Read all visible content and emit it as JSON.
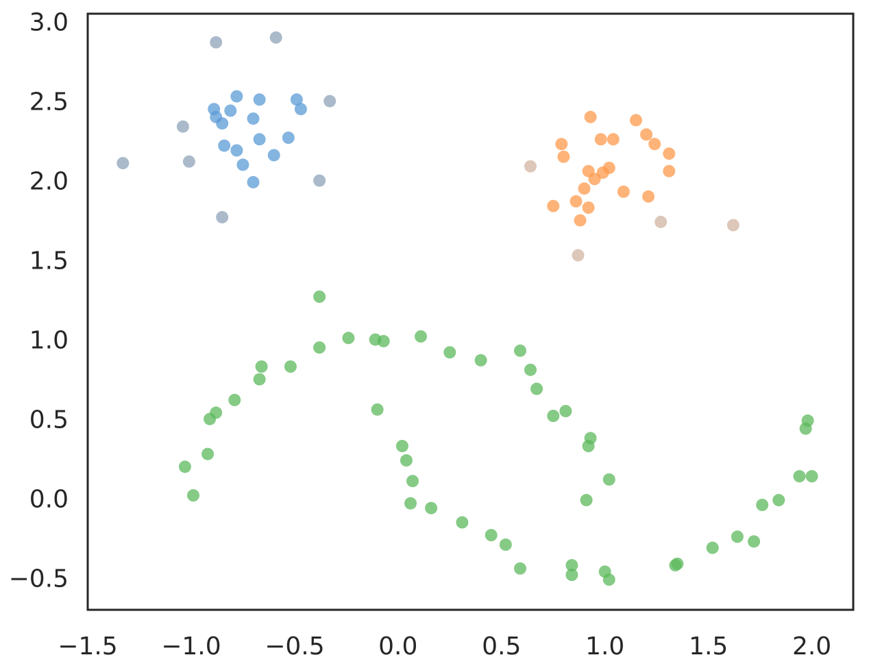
{
  "chart_data": {
    "type": "scatter",
    "title": "",
    "xlabel": "",
    "ylabel": "",
    "xlim": [
      -1.5,
      2.2
    ],
    "ylim": [
      -0.7,
      3.05
    ],
    "grid": false,
    "legend": "none",
    "xticks": [
      -1.5,
      -1.0,
      -0.5,
      0.0,
      0.5,
      1.0,
      1.5,
      2.0
    ],
    "yticks": [
      -0.5,
      0.0,
      0.5,
      1.0,
      1.5,
      2.0,
      2.5,
      3.0
    ],
    "xtick_labels": [
      "−1.5",
      "−1.0",
      "−0.5",
      "0.0",
      "0.5",
      "1.0",
      "1.5",
      "2.0"
    ],
    "ytick_labels": [
      "−0.5",
      "0.0",
      "0.5",
      "1.0",
      "1.5",
      "2.0",
      "2.5",
      "3.0"
    ],
    "series": [
      {
        "color": "#5b9bd5",
        "points": [
          [
            -0.78,
            2.53
          ],
          [
            -0.67,
            2.51
          ],
          [
            -0.89,
            2.45
          ],
          [
            -0.81,
            2.44
          ],
          [
            -0.88,
            2.4
          ],
          [
            -0.85,
            2.36
          ],
          [
            -0.7,
            2.39
          ],
          [
            -0.67,
            2.26
          ],
          [
            -0.53,
            2.27
          ],
          [
            -0.84,
            2.22
          ],
          [
            -0.78,
            2.19
          ],
          [
            -0.6,
            2.16
          ],
          [
            -0.75,
            2.1
          ],
          [
            -0.7,
            1.99
          ],
          [
            -0.49,
            2.51
          ],
          [
            -0.47,
            2.45
          ]
        ]
      },
      {
        "color": "#fd9a4c",
        "points": [
          [
            0.93,
            2.4
          ],
          [
            1.15,
            2.38
          ],
          [
            1.2,
            2.29
          ],
          [
            0.98,
            2.26
          ],
          [
            1.04,
            2.26
          ],
          [
            0.79,
            2.23
          ],
          [
            1.24,
            2.23
          ],
          [
            0.8,
            2.15
          ],
          [
            1.31,
            2.17
          ],
          [
            0.92,
            2.06
          ],
          [
            1.02,
            2.08
          ],
          [
            0.99,
            2.05
          ],
          [
            0.95,
            2.01
          ],
          [
            1.31,
            2.06
          ],
          [
            0.9,
            1.95
          ],
          [
            1.09,
            1.93
          ],
          [
            1.21,
            1.9
          ],
          [
            0.86,
            1.87
          ],
          [
            0.75,
            1.84
          ],
          [
            0.92,
            1.83
          ],
          [
            0.88,
            1.75
          ]
        ]
      },
      {
        "color": "#5cb85c",
        "points": [
          [
            -0.38,
            1.27
          ],
          [
            -0.24,
            1.01
          ],
          [
            -0.11,
            1.0
          ],
          [
            -0.07,
            0.99
          ],
          [
            0.11,
            1.02
          ],
          [
            0.25,
            0.92
          ],
          [
            0.4,
            0.87
          ],
          [
            0.59,
            0.93
          ],
          [
            0.64,
            0.81
          ],
          [
            0.67,
            0.69
          ],
          [
            0.75,
            0.52
          ],
          [
            0.81,
            0.55
          ],
          [
            0.93,
            0.38
          ],
          [
            0.92,
            0.33
          ],
          [
            1.02,
            0.12
          ],
          [
            0.91,
            -0.01
          ],
          [
            -0.38,
            0.95
          ],
          [
            -0.52,
            0.83
          ],
          [
            -0.66,
            0.83
          ],
          [
            -0.67,
            0.75
          ],
          [
            -0.79,
            0.62
          ],
          [
            -0.88,
            0.54
          ],
          [
            -0.91,
            0.5
          ],
          [
            -0.92,
            0.28
          ],
          [
            -1.03,
            0.2
          ],
          [
            -0.99,
            0.02
          ],
          [
            -0.1,
            0.56
          ],
          [
            0.02,
            0.33
          ],
          [
            0.04,
            0.24
          ],
          [
            0.07,
            0.11
          ],
          [
            0.06,
            -0.03
          ],
          [
            0.16,
            -0.06
          ],
          [
            0.31,
            -0.15
          ],
          [
            0.45,
            -0.23
          ],
          [
            0.52,
            -0.29
          ],
          [
            0.59,
            -0.44
          ],
          [
            0.84,
            -0.42
          ],
          [
            0.84,
            -0.48
          ],
          [
            1.0,
            -0.46
          ],
          [
            1.02,
            -0.51
          ],
          [
            1.34,
            -0.42
          ],
          [
            1.35,
            -0.41
          ],
          [
            1.52,
            -0.31
          ],
          [
            1.64,
            -0.24
          ],
          [
            1.72,
            -0.27
          ],
          [
            1.76,
            -0.04
          ],
          [
            1.84,
            -0.01
          ],
          [
            1.94,
            0.14
          ],
          [
            2.0,
            0.14
          ],
          [
            1.97,
            0.44
          ],
          [
            1.98,
            0.49
          ]
        ]
      },
      {
        "color": "#8fa3b8",
        "points": [
          [
            -0.88,
            2.87
          ],
          [
            -0.59,
            2.9
          ],
          [
            -1.04,
            2.34
          ],
          [
            -0.33,
            2.5
          ],
          [
            -1.33,
            2.11
          ],
          [
            -1.01,
            2.12
          ],
          [
            -0.38,
            2.0
          ],
          [
            -0.85,
            1.77
          ]
        ]
      },
      {
        "color": "#d0b4a2",
        "points": [
          [
            0.64,
            2.09
          ],
          [
            1.27,
            1.74
          ],
          [
            1.62,
            1.72
          ],
          [
            0.87,
            1.53
          ]
        ]
      }
    ]
  }
}
